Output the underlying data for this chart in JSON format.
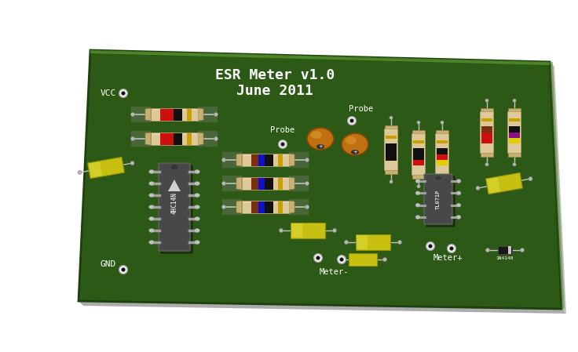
{
  "title_line1": "ESR Meter v1.0",
  "title_line2": "June 2011",
  "bg_color": "#ffffff",
  "board_color": "#2d5916",
  "board_edge": "#1e400e",
  "board_highlight": "#3d7a20",
  "text_color": "#ffffff",
  "label_vcc": "VCC",
  "label_gnd": "GND",
  "label_probe1": "Probe",
  "label_probe2": "Probe",
  "label_meter_minus": "Meter-",
  "label_meter_plus": "Meter+",
  "ic1_label": "4HC14N",
  "ic2_label": "TL071P",
  "diode_label": "1N4148",
  "resistor_body": "#dcc898",
  "resistor_cap": "#c8b070",
  "lead_color": "#c0c0c0",
  "ic_body": "#505050",
  "ic_text": "#d8d8d8",
  "cap_orange": "#c07818",
  "yellow_cap": "#c8c010",
  "diode_body": "#181818",
  "stripe_red": "#cc1010",
  "stripe_blue": "#1010cc",
  "stripe_black": "#101010",
  "stripe_yellow": "#e0d000",
  "stripe_purple": "#881088",
  "stripe_brown": "#7a3010",
  "stripe_gold": "#c8a000",
  "stripe_orange_s": "#c06010"
}
